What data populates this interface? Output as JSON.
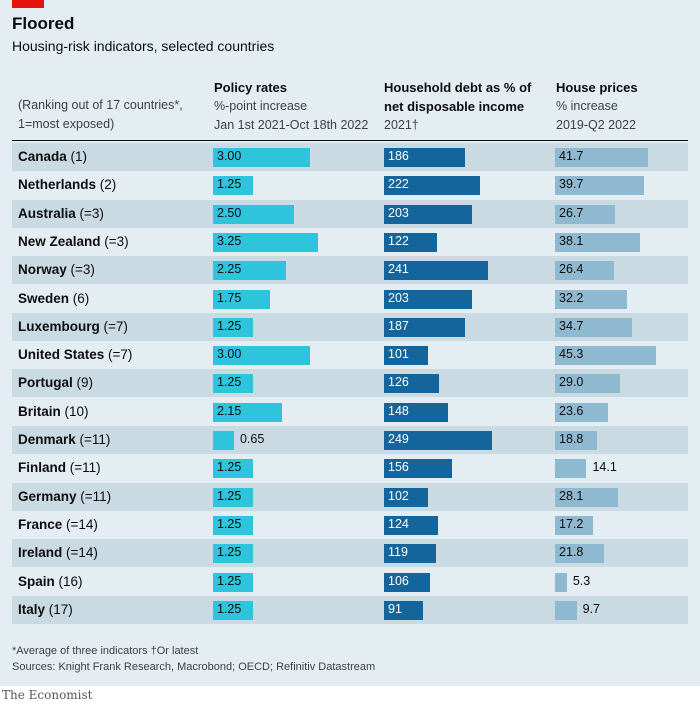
{
  "header": {
    "title": "Floored",
    "subtitle": "Housing-risk indicators, selected countries"
  },
  "columns": {
    "rank": {
      "line1": "(Ranking out of 17 countries*,",
      "line2": "1=most exposed)"
    },
    "policy": {
      "title": "Policy rates",
      "line1": "%-point increase",
      "line2": "Jan 1st 2021-Oct 18th 2022"
    },
    "debt": {
      "title_line1": "Household debt as % of",
      "title_line2": "net disposable income",
      "line1": "2021†"
    },
    "house": {
      "title": "House prices",
      "line1": "% increase",
      "line2": "2019-Q2 2022"
    }
  },
  "colors": {
    "policy_bar": "#2ec4dc",
    "debt_bar": "#13659c",
    "house_bar": "#8fb9d0",
    "row_shade": "#c9dae3",
    "background": "#e4edf2",
    "brand_red": "#e3120b"
  },
  "chart_data": {
    "type": "table",
    "title": "Floored",
    "subtitle": "Housing-risk indicators, selected countries",
    "columns": [
      "Policy rates",
      "Household debt as % of net disposable income",
      "House prices"
    ],
    "rows": [
      {
        "country": "Canada",
        "rank": "(1)",
        "policy": "3.00",
        "debt": "186",
        "house": "41.7"
      },
      {
        "country": "Netherlands",
        "rank": "(2)",
        "policy": "1.25",
        "debt": "222",
        "house": "39.7"
      },
      {
        "country": "Australia",
        "rank": "(=3)",
        "policy": "2.50",
        "debt": "203",
        "house": "26.7"
      },
      {
        "country": "New Zealand",
        "rank": "(=3)",
        "policy": "3.25",
        "debt": "122",
        "house": "38.1"
      },
      {
        "country": "Norway",
        "rank": "(=3)",
        "policy": "2.25",
        "debt": "241",
        "house": "26.4"
      },
      {
        "country": "Sweden",
        "rank": "(6)",
        "policy": "1.75",
        "debt": "203",
        "house": "32.2"
      },
      {
        "country": "Luxembourg",
        "rank": "(=7)",
        "policy": "1.25",
        "debt": "187",
        "house": "34.7"
      },
      {
        "country": "United States",
        "rank": "(=7)",
        "policy": "3.00",
        "debt": "101",
        "house": "45.3"
      },
      {
        "country": "Portugal",
        "rank": "(9)",
        "policy": "1.25",
        "debt": "126",
        "house": "29.0"
      },
      {
        "country": "Britain",
        "rank": "(10)",
        "policy": "2.15",
        "debt": "148",
        "house": "23.6"
      },
      {
        "country": "Denmark",
        "rank": "(=11)",
        "policy": "0.65",
        "debt": "249",
        "house": "18.8"
      },
      {
        "country": "Finland",
        "rank": "(=11)",
        "policy": "1.25",
        "debt": "156",
        "house": "14.1"
      },
      {
        "country": "Germany",
        "rank": "(=11)",
        "policy": "1.25",
        "debt": "102",
        "house": "28.1"
      },
      {
        "country": "France",
        "rank": "(=14)",
        "policy": "1.25",
        "debt": "124",
        "house": "17.2"
      },
      {
        "country": "Ireland",
        "rank": "(=14)",
        "policy": "1.25",
        "debt": "119",
        "house": "21.8"
      },
      {
        "country": "Spain",
        "rank": "(16)",
        "policy": "1.25",
        "debt": "106",
        "house": "5.3"
      },
      {
        "country": "Italy",
        "rank": "(17)",
        "policy": "1.25",
        "debt": "91",
        "house": "9.7"
      }
    ]
  },
  "footer": {
    "footnote": "*Average of three indicators   †Or latest",
    "sources": "Sources: Knight Frank Research, Macrobond; OECD; Refinitiv Datastream",
    "brand": "The Economist"
  }
}
